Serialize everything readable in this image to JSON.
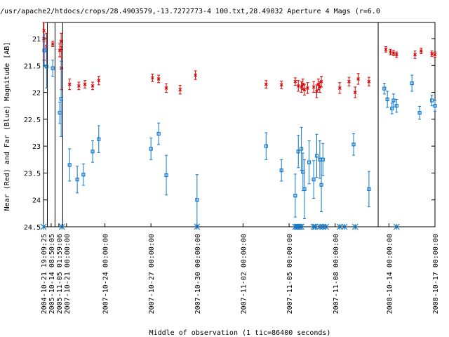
{
  "chart_data": {
    "type": "scatter",
    "title": "/usr/apache2/htdocs/crops/28.4903579,-13.7272773-4 100.txt,28.49032    Aperture 4 Mags (r=6.0",
    "xlabel": "Middle of observation (1 tic=86400 seconds)",
    "ylabel": "Near (Red) and Far (Blue) Magnitude [AB]",
    "ylim": [
      24.5,
      20.7
    ],
    "y_inverted": true,
    "y_ticks": [
      21,
      21.5,
      22,
      22.5,
      23,
      23.5,
      24,
      24.5
    ],
    "y_tick_labels": [
      "21",
      "21.5",
      "22",
      "22.5",
      "23",
      "23.5",
      "24",
      "24.5"
    ],
    "x_ticks": [
      {
        "label": "2004-10-21 19:09:25",
        "pos": 0.0
      },
      {
        "label": "2005-10-14 08:50:05",
        "pos": 0.5
      },
      {
        "label": "2005-11-05 01:59:06",
        "pos": 1.0
      },
      {
        "label": "2007-10-21 00:00:00",
        "pos": 1.5
      },
      {
        "label": "2007-10-24 00:00:00",
        "pos": 4.0
      },
      {
        "label": "2007-10-27 00:00:00",
        "pos": 7.0
      },
      {
        "label": "2007-10-30 00:00:00",
        "pos": 10.0
      },
      {
        "label": "2007-11-02 00:00:00",
        "pos": 13.0
      },
      {
        "label": "2007-11-05 00:00:00",
        "pos": 16.0
      },
      {
        "label": "2007-11-08 00:00:00",
        "pos": 19.0
      },
      {
        "label": "2008-10-14 00:00:00",
        "pos": 22.5
      },
      {
        "label": "2008-10-17 00:00:00",
        "pos": 25.5
      }
    ],
    "x_range": [
      0,
      25.5
    ],
    "segment_breaks": [
      0.25,
      0.75,
      1.25,
      21.8
    ],
    "colors": {
      "near": "#d40000",
      "far": "#1177cc",
      "marker": "#1177cc"
    },
    "series": [
      {
        "name": "Near (Red)",
        "marker": "x",
        "points": [
          {
            "x": 0.02,
            "y": 21.0,
            "err": 0.4
          },
          {
            "x": 0.03,
            "y": 20.85,
            "err": 0.2
          },
          {
            "x": 0.2,
            "y": 21.15,
            "err": 0.25
          },
          {
            "x": 0.6,
            "y": 21.1,
            "err": 0.05
          },
          {
            "x": 1.06,
            "y": 21.22,
            "err": 0.12
          },
          {
            "x": 1.15,
            "y": 21.05,
            "err": 0.15
          },
          {
            "x": 1.16,
            "y": 21.55,
            "err": 0.4
          },
          {
            "x": 1.7,
            "y": 21.85,
            "err": 0.1
          },
          {
            "x": 2.3,
            "y": 21.88,
            "err": 0.07
          },
          {
            "x": 2.7,
            "y": 21.85,
            "err": 0.07
          },
          {
            "x": 3.2,
            "y": 21.88,
            "err": 0.07
          },
          {
            "x": 3.6,
            "y": 21.78,
            "err": 0.08
          },
          {
            "x": 7.1,
            "y": 21.73,
            "err": 0.07
          },
          {
            "x": 7.5,
            "y": 21.75,
            "err": 0.07
          },
          {
            "x": 8.0,
            "y": 21.92,
            "err": 0.08
          },
          {
            "x": 8.9,
            "y": 21.95,
            "err": 0.08
          },
          {
            "x": 9.9,
            "y": 21.68,
            "err": 0.08
          },
          {
            "x": 14.5,
            "y": 21.85,
            "err": 0.07
          },
          {
            "x": 15.5,
            "y": 21.86,
            "err": 0.07
          },
          {
            "x": 16.4,
            "y": 21.8,
            "err": 0.07
          },
          {
            "x": 16.6,
            "y": 21.88,
            "err": 0.1
          },
          {
            "x": 16.8,
            "y": 21.9,
            "err": 0.1
          },
          {
            "x": 16.9,
            "y": 21.85,
            "err": 0.1
          },
          {
            "x": 17.0,
            "y": 21.95,
            "err": 0.1
          },
          {
            "x": 17.2,
            "y": 21.92,
            "err": 0.1
          },
          {
            "x": 17.6,
            "y": 21.9,
            "err": 0.1
          },
          {
            "x": 17.8,
            "y": 21.98,
            "err": 0.12
          },
          {
            "x": 17.9,
            "y": 21.85,
            "err": 0.1
          },
          {
            "x": 18.0,
            "y": 21.9,
            "err": 0.1
          },
          {
            "x": 18.1,
            "y": 21.8,
            "err": 0.1
          },
          {
            "x": 19.3,
            "y": 21.92,
            "err": 0.1
          },
          {
            "x": 19.9,
            "y": 21.8,
            "err": 0.08
          },
          {
            "x": 20.3,
            "y": 22.0,
            "err": 0.1
          },
          {
            "x": 20.5,
            "y": 21.75,
            "err": 0.1
          },
          {
            "x": 21.2,
            "y": 21.8,
            "err": 0.08
          },
          {
            "x": 22.3,
            "y": 21.2,
            "err": 0.05
          },
          {
            "x": 22.6,
            "y": 21.25,
            "err": 0.05
          },
          {
            "x": 22.8,
            "y": 21.27,
            "err": 0.05
          },
          {
            "x": 23.0,
            "y": 21.3,
            "err": 0.05
          },
          {
            "x": 24.2,
            "y": 21.3,
            "err": 0.07
          },
          {
            "x": 24.6,
            "y": 21.23,
            "err": 0.05
          },
          {
            "x": 25.3,
            "y": 21.28,
            "err": 0.05
          },
          {
            "x": 25.5,
            "y": 21.3,
            "err": 0.05
          }
        ]
      },
      {
        "name": "Far (Blue)",
        "marker": "square",
        "points": [
          {
            "x": 0.05,
            "y": 21.22,
            "err": 0.3
          },
          {
            "x": 0.2,
            "y": 21.52,
            "err": 0.4
          },
          {
            "x": 0.6,
            "y": 21.55,
            "err": 0.15
          },
          {
            "x": 1.06,
            "y": 22.38,
            "err": 0.2
          },
          {
            "x": 1.15,
            "y": 22.12,
            "err": 0.7
          },
          {
            "x": 1.7,
            "y": 23.35,
            "err": 0.3
          },
          {
            "x": 2.2,
            "y": 23.62,
            "err": 0.25
          },
          {
            "x": 2.6,
            "y": 23.53,
            "err": 0.2
          },
          {
            "x": 3.2,
            "y": 23.1,
            "err": 0.2
          },
          {
            "x": 3.6,
            "y": 22.87,
            "err": 0.25
          },
          {
            "x": 7.0,
            "y": 23.05,
            "err": 0.2
          },
          {
            "x": 7.5,
            "y": 22.77,
            "err": 0.2
          },
          {
            "x": 8.0,
            "y": 23.54,
            "err": 0.37
          },
          {
            "x": 10.0,
            "y": 24.0,
            "err": 0.47
          },
          {
            "x": 14.5,
            "y": 23.0,
            "err": 0.25
          },
          {
            "x": 15.5,
            "y": 23.45,
            "err": 0.2
          },
          {
            "x": 16.4,
            "y": 23.92,
            "err": 0.4
          },
          {
            "x": 16.6,
            "y": 23.1,
            "err": 0.3
          },
          {
            "x": 16.8,
            "y": 23.05,
            "err": 0.4
          },
          {
            "x": 16.9,
            "y": 23.48,
            "err": 0.35
          },
          {
            "x": 17.0,
            "y": 23.8,
            "err": 0.55
          },
          {
            "x": 17.3,
            "y": 23.3,
            "err": 0.4
          },
          {
            "x": 17.6,
            "y": 23.62,
            "err": 0.35
          },
          {
            "x": 17.8,
            "y": 23.18,
            "err": 0.4
          },
          {
            "x": 18.0,
            "y": 23.25,
            "err": 0.35
          },
          {
            "x": 18.1,
            "y": 23.72,
            "err": 0.5
          },
          {
            "x": 18.2,
            "y": 23.25,
            "err": 0.3
          },
          {
            "x": 20.2,
            "y": 22.97,
            "err": 0.2
          },
          {
            "x": 21.2,
            "y": 23.8,
            "err": 0.33
          },
          {
            "x": 22.2,
            "y": 21.93,
            "err": 0.1
          },
          {
            "x": 22.4,
            "y": 22.13,
            "err": 0.15
          },
          {
            "x": 22.7,
            "y": 22.3,
            "err": 0.1
          },
          {
            "x": 22.8,
            "y": 22.15,
            "err": 0.12
          },
          {
            "x": 23.0,
            "y": 22.25,
            "err": 0.12
          },
          {
            "x": 24.0,
            "y": 21.83,
            "err": 0.15
          },
          {
            "x": 24.5,
            "y": 22.38,
            "err": 0.12
          },
          {
            "x": 25.3,
            "y": 22.15,
            "err": 0.1
          },
          {
            "x": 25.5,
            "y": 22.25,
            "err": 0.1
          }
        ]
      }
    ],
    "epoch_markers_x": [
      0.0,
      1.2,
      10.0,
      16.4,
      16.5,
      16.6,
      16.7,
      16.8,
      17.6,
      17.7,
      18.0,
      18.2,
      18.4,
      19.3,
      19.6,
      20.3,
      23.0
    ]
  }
}
